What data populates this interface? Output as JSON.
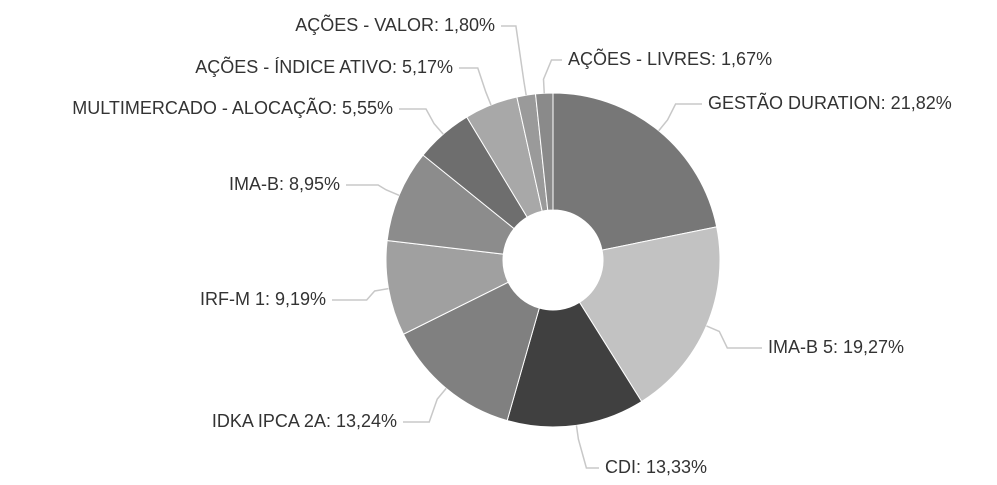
{
  "chart_data": {
    "type": "donut",
    "values": [
      21.82,
      19.27,
      13.33,
      13.24,
      9.19,
      8.95,
      5.55,
      5.17,
      1.8,
      1.67
    ],
    "value_labels": [
      "GESTÃO DURATION: 21,82%",
      "IMA-B 5: 19,27%",
      "CDI: 13,33%",
      "IDKA IPCA 2A: 13,24%",
      "IRF-M 1: 9,19%",
      "IMA-B: 8,95%",
      "MULTIMERCADO - ALOCAÇÃO: 5,55%",
      "AÇÕES - ÍNDICE ATIVO: 5,17%",
      "AÇÕES - VALOR: 1,80%",
      "AÇÕES - LIVRES: 1,67%"
    ],
    "colors": [
      "#777777",
      "#c2c2c2",
      "#404040",
      "#808080",
      "#a0a0a0",
      "#8c8c8c",
      "#6e6e6e",
      "#a8a8a8",
      "#9a9a9a",
      "#8a8a8a"
    ]
  }
}
